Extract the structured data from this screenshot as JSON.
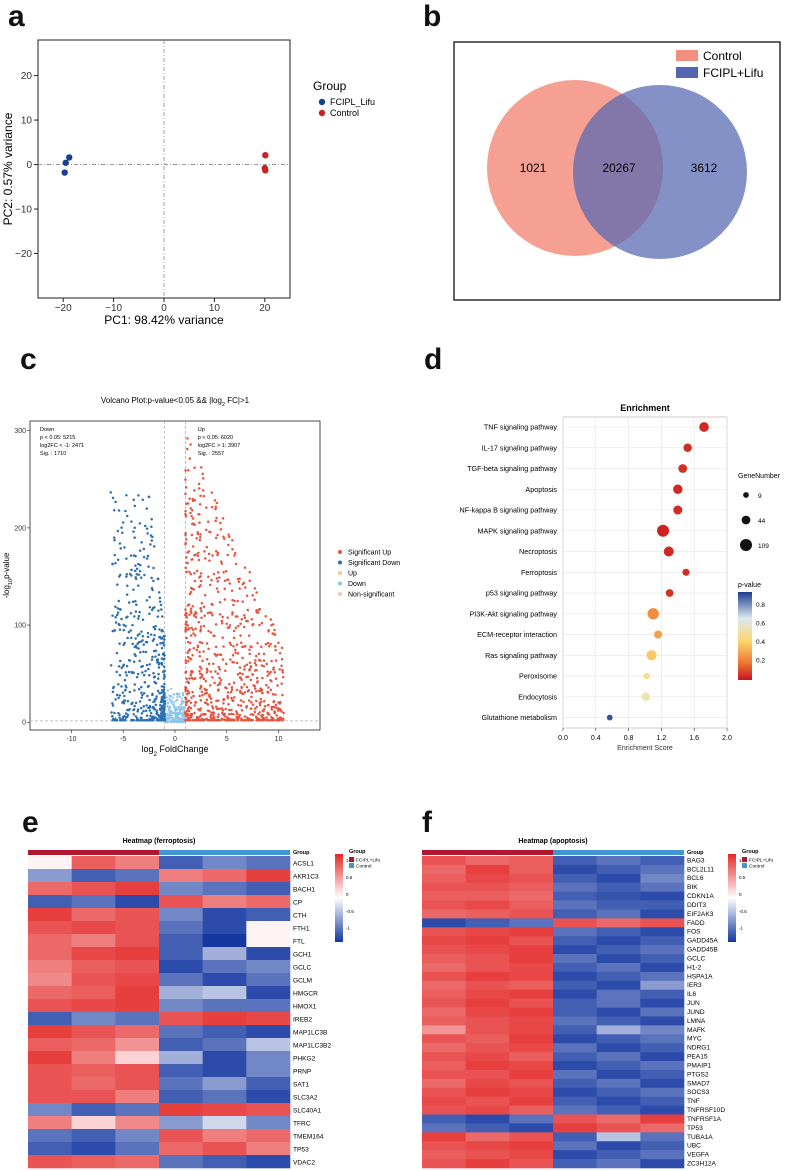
{
  "panel_labels": [
    "a",
    "b",
    "c",
    "d",
    "e",
    "f"
  ],
  "chart_data": [
    {
      "id": "a",
      "type": "scatter",
      "xlabel": "PC1: 98.42% variance",
      "ylabel": "PC2: 0.57% variance",
      "xlim": [
        -25,
        25
      ],
      "ylim": [
        -30,
        28
      ],
      "xticks": [
        -20,
        -10,
        0,
        10,
        20
      ],
      "xtick_labels": [
        "−20",
        "−10",
        "0",
        "10",
        "20"
      ],
      "yticks": [
        20,
        10,
        0,
        -10,
        -20
      ],
      "ytick_labels": [
        "20",
        "10",
        "0",
        "−10",
        "−20"
      ],
      "legend_title": "Group",
      "series": [
        {
          "name": "FCIPL_Lifu",
          "color": "#1a3f8f",
          "points": [
            [
              -19.5,
              0.4
            ],
            [
              -18.8,
              1.6
            ],
            [
              -19.7,
              -1.8
            ]
          ]
        },
        {
          "name": "Control",
          "color": "#cc1f1f",
          "points": [
            [
              20.1,
              2.1
            ],
            [
              20.0,
              -0.8
            ],
            [
              20.1,
              -1.3
            ]
          ]
        }
      ]
    },
    {
      "id": "b",
      "type": "venn",
      "sets": [
        {
          "name": "Control",
          "color": "#f48f80"
        },
        {
          "name": "FCIPL+Lifu",
          "color": "#5566b0"
        }
      ],
      "regions": {
        "only_a": "1021",
        "both": "20267",
        "only_b": "3612"
      }
    },
    {
      "id": "c",
      "type": "scatter",
      "title": "Volcano Plot:p-value<0.05 && |log",
      "title_sub": "2",
      "title_tail": " FC|>1",
      "xlabel": "log",
      "xlabel_sub": "2",
      "xlabel_tail": " FoldChange",
      "ylabel": "-log",
      "ylabel_sub": "10",
      "ylabel_tail": "p-value",
      "xticks": [
        -10,
        -5,
        0,
        5,
        10
      ],
      "xtick_labels": [
        "-10",
        "-5",
        "0",
        "5",
        "10"
      ],
      "yticks": [
        0,
        100,
        200,
        300
      ],
      "ytick_labels": [
        "0",
        "100",
        "200",
        "300"
      ],
      "xlim": [
        -14,
        14
      ],
      "ylim": [
        -8,
        310
      ],
      "down_annotation": [
        "Down",
        "p < 0.05: 5215",
        "log2FC < -1: 2471",
        "Sig. : 1710"
      ],
      "up_annotation": [
        "Up",
        "p < 0.05: 6020",
        "log2FC > 1: 3907",
        "Sig. : 2557"
      ],
      "legend": [
        {
          "name": "Significant Up",
          "color": "#e8533f"
        },
        {
          "name": "Significant Down",
          "color": "#2c70b0"
        },
        {
          "name": "Up",
          "color": "#f6c69a"
        },
        {
          "name": "Down",
          "color": "#8dc4e8"
        },
        {
          "name": "Non-significant",
          "color": "#f4c0c0"
        }
      ]
    },
    {
      "id": "d",
      "type": "scatter",
      "title": "Enrichment",
      "xlabel": "Enrichment Score",
      "xticks": [
        0.0,
        0.4,
        0.8,
        1.2,
        1.6,
        2.0
      ],
      "xtick_labels": [
        "0.0",
        "0.4",
        "0.8",
        "1.2",
        "1.6",
        "2.0"
      ],
      "xlim": [
        0.0,
        2.0
      ],
      "pathways": [
        "TNF signaling pathway",
        "IL-17 signaling pathway",
        "TGF-beta signaling pathway",
        "Apoptosis",
        "NF-kappa B signaling pathway",
        "MAPK signaling pathway",
        "Necroptosis",
        "Ferroptosis",
        "p53 signaling pathway",
        "PI3K-Akt signaling pathway",
        "ECM-receptor interaction",
        "Ras signaling pathway",
        "Peroxisome",
        "Endocytosis",
        "Glutathione metabolism"
      ],
      "scores": [
        1.72,
        1.52,
        1.46,
        1.4,
        1.4,
        1.22,
        1.29,
        1.5,
        1.3,
        1.1,
        1.16,
        1.08,
        1.02,
        1.01,
        0.57
      ],
      "gene_numbers": [
        60,
        40,
        45,
        55,
        48,
        109,
        65,
        22,
        30,
        95,
        35,
        70,
        15,
        40,
        10
      ],
      "pvalues": [
        0.05,
        0.06,
        0.07,
        0.05,
        0.06,
        0.03,
        0.05,
        0.06,
        0.08,
        0.3,
        0.35,
        0.45,
        0.55,
        0.6,
        0.95
      ],
      "size_legend_title": "GeneNumber",
      "size_legend": [
        "9",
        "44",
        "109"
      ],
      "color_legend_title": "p-value",
      "color_legend": [
        "0.8",
        "0.6",
        "0.4",
        "0.2"
      ]
    },
    {
      "id": "e",
      "type": "heatmap",
      "title": "Heatmap (ferroptosis)",
      "group_label": "Group",
      "groups": [
        {
          "name": "FCIPL+Lifu",
          "color": "#b0172e"
        },
        {
          "name": "Control",
          "color": "#3f96d0"
        }
      ],
      "scale_labels": [
        "1",
        "0.5",
        "0",
        "-0.5",
        "-1"
      ],
      "genes": [
        "ACSL1",
        "AKR1C3",
        "BACH1",
        "CP",
        "CTH",
        "FTH1",
        "FTL",
        "GCH1",
        "GCLC",
        "GCLM",
        "HMGCR",
        "HMOX1",
        "IREB2",
        "MAP1LC3B",
        "MAP1LC3B2",
        "PHKG2",
        "PRNP",
        "SAT1",
        "SLC3A2",
        "SLC40A1",
        "TFRC",
        "TMEM164",
        "TP53",
        "VDAC2"
      ],
      "values": [
        [
          0.05,
          0.75,
          0.6,
          -0.8,
          -0.6,
          -0.7
        ],
        [
          -0.5,
          -0.8,
          -0.7,
          0.6,
          0.7,
          0.9
        ],
        [
          0.7,
          0.8,
          0.9,
          -0.6,
          -0.7,
          -0.8
        ],
        [
          -0.8,
          -0.7,
          -0.9,
          0.8,
          0.6,
          0.7
        ],
        [
          0.9,
          0.7,
          0.8,
          -0.6,
          -0.9,
          -0.8
        ],
        [
          0.8,
          0.85,
          0.8,
          -0.7,
          -0.9,
          0.05
        ],
        [
          0.7,
          0.6,
          0.8,
          -0.8,
          -1,
          0.05
        ],
        [
          0.7,
          0.85,
          0.9,
          -0.8,
          -0.4,
          -0.9
        ],
        [
          0.6,
          0.75,
          0.8,
          -0.9,
          -0.7,
          -0.6
        ],
        [
          0.55,
          0.8,
          0.85,
          -0.7,
          -0.9,
          -0.7
        ],
        [
          0.7,
          0.75,
          0.9,
          -0.4,
          -0.3,
          -0.9
        ],
        [
          0.8,
          0.85,
          0.9,
          -0.6,
          -0.7,
          -0.7
        ],
        [
          -0.8,
          -0.6,
          -0.7,
          0.8,
          0.9,
          0.85
        ],
        [
          0.9,
          0.8,
          0.7,
          -0.7,
          -0.8,
          -0.9
        ],
        [
          0.75,
          0.7,
          0.5,
          -0.8,
          -0.7,
          -0.3
        ],
        [
          0.9,
          0.6,
          0.2,
          -0.4,
          -0.9,
          -0.6
        ],
        [
          0.8,
          0.75,
          0.8,
          -0.8,
          -0.9,
          -0.6
        ],
        [
          0.8,
          0.7,
          0.8,
          -0.7,
          -0.5,
          -0.8
        ],
        [
          0.8,
          0.8,
          0.6,
          -0.8,
          -0.7,
          -0.9
        ],
        [
          -0.6,
          -0.8,
          -0.7,
          0.9,
          0.85,
          0.8
        ],
        [
          0.6,
          0.2,
          0.55,
          -0.5,
          -0.2,
          -0.6
        ],
        [
          -0.7,
          -0.8,
          -0.6,
          0.8,
          0.6,
          0.7
        ],
        [
          -0.8,
          -0.9,
          -0.7,
          0.7,
          0.8,
          0.6
        ],
        [
          0.8,
          0.75,
          0.7,
          -0.7,
          -0.8,
          -0.9
        ]
      ]
    },
    {
      "id": "f",
      "type": "heatmap",
      "title": "Heatmap (apoptosis)",
      "group_label": "Group",
      "groups": [
        {
          "name": "FCIPL+Lifu",
          "color": "#b0172e"
        },
        {
          "name": "Control",
          "color": "#3f96d0"
        }
      ],
      "scale_labels": [
        "1",
        "0.5",
        "0",
        "-0.5",
        "-1"
      ],
      "genes": [
        "BAG3",
        "BCL2L11",
        "BCL6",
        "BIK",
        "CDKN1A",
        "DDIT3",
        "EIF2AK3",
        "FADD",
        "FOS",
        "GADD45A",
        "GADD45B",
        "GCLC",
        "H1-2",
        "HSPA1A",
        "IER3",
        "IL6",
        "JUN",
        "JUND",
        "LMNA",
        "MAFK",
        "MYC",
        "NDRG1",
        "PEA15",
        "PMAIP1",
        "PTGS2",
        "SMAD7",
        "SOCS3",
        "TNF",
        "TNFRSF10D",
        "TNFRSF1A",
        "TP53",
        "TUBA1A",
        "UBC",
        "VEGFA",
        "ZC3H12A"
      ],
      "values": [
        [
          0.8,
          0.7,
          0.75,
          -0.8,
          -0.7,
          -0.8
        ],
        [
          0.7,
          0.9,
          0.75,
          -0.9,
          -0.8,
          -0.7
        ],
        [
          0.75,
          0.85,
          0.8,
          -0.8,
          -0.9,
          -0.6
        ],
        [
          0.8,
          0.8,
          0.75,
          -0.7,
          -0.8,
          -0.7
        ],
        [
          0.75,
          0.75,
          0.7,
          -0.8,
          -0.85,
          -0.9
        ],
        [
          0.8,
          0.85,
          0.75,
          -0.7,
          -0.8,
          -0.8
        ],
        [
          0.7,
          0.75,
          0.8,
          -0.8,
          -0.7,
          -0.9
        ],
        [
          -0.9,
          -0.8,
          -0.7,
          0.8,
          0.7,
          0.8
        ],
        [
          0.8,
          0.85,
          0.9,
          -0.7,
          -0.8,
          -0.9
        ],
        [
          0.85,
          0.9,
          0.8,
          -0.8,
          -0.9,
          -0.8
        ],
        [
          0.8,
          0.85,
          0.9,
          -0.9,
          -0.8,
          -0.7
        ],
        [
          0.75,
          0.8,
          0.9,
          -0.7,
          -0.9,
          -0.8
        ],
        [
          0.7,
          0.8,
          0.85,
          -0.8,
          -0.7,
          -0.9
        ],
        [
          0.8,
          0.9,
          0.85,
          -0.9,
          -0.8,
          -0.7
        ],
        [
          0.7,
          0.8,
          0.75,
          -0.8,
          -0.9,
          -0.5
        ],
        [
          0.75,
          0.85,
          0.9,
          -0.9,
          -0.7,
          -0.8
        ],
        [
          0.8,
          0.9,
          0.8,
          -0.8,
          -0.7,
          -0.9
        ],
        [
          0.7,
          0.85,
          0.9,
          -0.8,
          -0.9,
          -0.7
        ],
        [
          0.75,
          0.8,
          0.85,
          -0.7,
          -0.8,
          -0.9
        ],
        [
          0.5,
          0.8,
          0.85,
          -0.8,
          -0.4,
          -0.6
        ],
        [
          0.8,
          0.75,
          0.9,
          -0.9,
          -0.8,
          -0.7
        ],
        [
          0.7,
          0.8,
          0.85,
          -0.7,
          -0.9,
          -0.8
        ],
        [
          0.8,
          0.85,
          0.75,
          -0.8,
          -0.7,
          -0.9
        ],
        [
          0.75,
          0.9,
          0.85,
          -0.9,
          -0.8,
          -0.7
        ],
        [
          0.8,
          0.8,
          0.9,
          -0.7,
          -0.9,
          -0.8
        ],
        [
          0.7,
          0.85,
          0.8,
          -0.8,
          -0.7,
          -0.9
        ],
        [
          0.8,
          0.9,
          0.85,
          -0.9,
          -0.8,
          -0.7
        ],
        [
          0.85,
          0.8,
          0.9,
          -0.8,
          -0.9,
          -0.8
        ],
        [
          0.8,
          0.85,
          0.75,
          -0.7,
          -0.8,
          -0.9
        ],
        [
          -0.8,
          -0.9,
          -0.7,
          0.8,
          0.7,
          0.9
        ],
        [
          -0.7,
          -0.8,
          -0.9,
          0.9,
          0.8,
          0.7
        ],
        [
          0.9,
          0.7,
          0.8,
          -0.8,
          -0.3,
          -0.7
        ],
        [
          0.8,
          0.85,
          0.9,
          -0.7,
          -0.9,
          -0.8
        ],
        [
          0.75,
          0.8,
          0.85,
          -0.9,
          -0.8,
          -0.7
        ],
        [
          0.8,
          0.9,
          0.8,
          -0.8,
          -0.7,
          -0.9
        ]
      ]
    }
  ]
}
